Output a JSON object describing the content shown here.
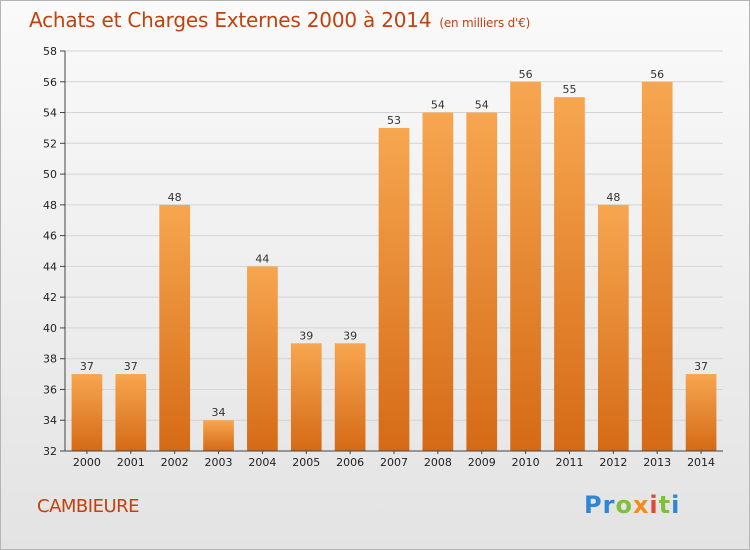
{
  "title": "Achats et Charges Externes 2000 à 2014",
  "unit_note": "(en milliers d'€)",
  "city": "CAMBIEURE",
  "logo": {
    "letters": [
      "P",
      "r",
      "o",
      "x",
      "i",
      "t",
      "i"
    ],
    "colors": [
      "#2f86d6",
      "#2f86d6",
      "#7fbf3f",
      "#f28c1d",
      "#d94b3a",
      "#7fbf3f",
      "#2f86d6"
    ]
  },
  "chart_data": {
    "type": "bar",
    "categories": [
      "2000",
      "2001",
      "2002",
      "2003",
      "2004",
      "2005",
      "2006",
      "2007",
      "2008",
      "2009",
      "2010",
      "2011",
      "2012",
      "2013",
      "2014"
    ],
    "values": [
      37,
      37,
      48,
      34,
      44,
      39,
      39,
      53,
      54,
      54,
      56,
      55,
      48,
      56,
      37
    ],
    "ylim": [
      32,
      58
    ],
    "yticks": [
      32,
      34,
      36,
      38,
      40,
      42,
      44,
      46,
      48,
      50,
      52,
      54,
      56,
      58
    ],
    "grid": true,
    "bar_color_top": "#f7a650",
    "bar_color_bottom": "#d56a16"
  }
}
